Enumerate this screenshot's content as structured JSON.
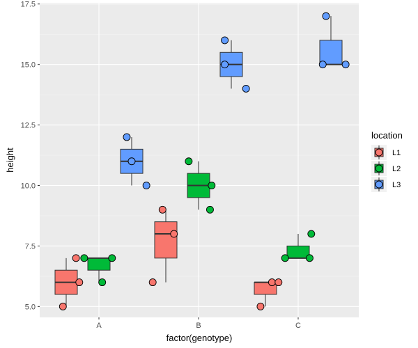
{
  "chart_data": {
    "type": "boxplot",
    "xlabel": "factor(genotype)",
    "ylabel": "height",
    "categories": [
      "A",
      "B",
      "C"
    ],
    "ylim": [
      4.55,
      17.55
    ],
    "yticks": [
      5.0,
      7.5,
      10.0,
      12.5,
      15.0,
      17.5
    ],
    "ytick_labels": [
      "5.0",
      "7.5",
      "10.0",
      "12.5",
      "15.0",
      "17.5"
    ],
    "legend": {
      "title": "location",
      "position": "right",
      "entries": [
        "L1",
        "L2",
        "L3"
      ]
    },
    "series": [
      {
        "name": "L1",
        "color": "#F8766D",
        "boxes": [
          {
            "category": "A",
            "lower_whisker": 5.0,
            "q1": 5.5,
            "median": 6.0,
            "q3": 6.5,
            "upper_whisker": 7.0
          },
          {
            "category": "B",
            "lower_whisker": 6.0,
            "q1": 7.0,
            "median": 8.0,
            "q3": 8.5,
            "upper_whisker": 9.0
          },
          {
            "category": "C",
            "lower_whisker": 5.0,
            "q1": 5.5,
            "median": 6.0,
            "q3": 6.0,
            "upper_whisker": 6.0
          }
        ],
        "points": [
          {
            "category": "A",
            "values": [
              5.0,
              6.0,
              7.0
            ],
            "jitter": [
              -0.1,
              0.4,
              0.3
            ]
          },
          {
            "category": "B",
            "values": [
              6.0,
              8.0,
              9.0
            ],
            "jitter": [
              -0.4,
              0.25,
              -0.1
            ]
          },
          {
            "category": "C",
            "values": [
              5.0,
              6.0,
              6.0
            ],
            "jitter": [
              -0.15,
              0.2,
              0.4
            ]
          }
        ]
      },
      {
        "name": "L2",
        "color": "#00BA38",
        "boxes": [
          {
            "category": "A",
            "lower_whisker": 6.0,
            "q1": 6.5,
            "median": 7.0,
            "q3": 7.0,
            "upper_whisker": 7.0
          },
          {
            "category": "B",
            "lower_whisker": 9.0,
            "q1": 9.5,
            "median": 10.0,
            "q3": 10.5,
            "upper_whisker": 11.0
          },
          {
            "category": "C",
            "lower_whisker": 7.0,
            "q1": 7.0,
            "median": 7.0,
            "q3": 7.5,
            "upper_whisker": 8.0
          }
        ],
        "points": [
          {
            "category": "A",
            "values": [
              6.0,
              7.0,
              7.0
            ],
            "jitter": [
              0.1,
              -0.45,
              0.4
            ]
          },
          {
            "category": "B",
            "values": [
              9.0,
              10.0,
              11.0
            ],
            "jitter": [
              0.35,
              0.4,
              -0.3
            ]
          },
          {
            "category": "C",
            "values": [
              7.0,
              7.0,
              8.0
            ],
            "jitter": [
              -0.4,
              0.35,
              0.4
            ]
          }
        ]
      },
      {
        "name": "L3",
        "color": "#619CFF",
        "boxes": [
          {
            "category": "A",
            "lower_whisker": 10.0,
            "q1": 10.5,
            "median": 11.0,
            "q3": 11.5,
            "upper_whisker": 12.0
          },
          {
            "category": "B",
            "lower_whisker": 14.0,
            "q1": 14.5,
            "median": 15.0,
            "q3": 15.5,
            "upper_whisker": 16.0
          },
          {
            "category": "C",
            "lower_whisker": 15.0,
            "q1": 15.0,
            "median": 15.0,
            "q3": 16.0,
            "upper_whisker": 17.0
          }
        ],
        "points": [
          {
            "category": "A",
            "values": [
              10.0,
              11.0,
              12.0
            ],
            "jitter": [
              0.45,
              0.0,
              -0.15
            ]
          },
          {
            "category": "B",
            "values": [
              14.0,
              15.0,
              16.0
            ],
            "jitter": [
              0.45,
              -0.2,
              -0.2
            ]
          },
          {
            "category": "C",
            "values": [
              15.0,
              15.0,
              17.0
            ],
            "jitter": [
              -0.25,
              0.45,
              -0.15
            ]
          }
        ]
      }
    ]
  }
}
